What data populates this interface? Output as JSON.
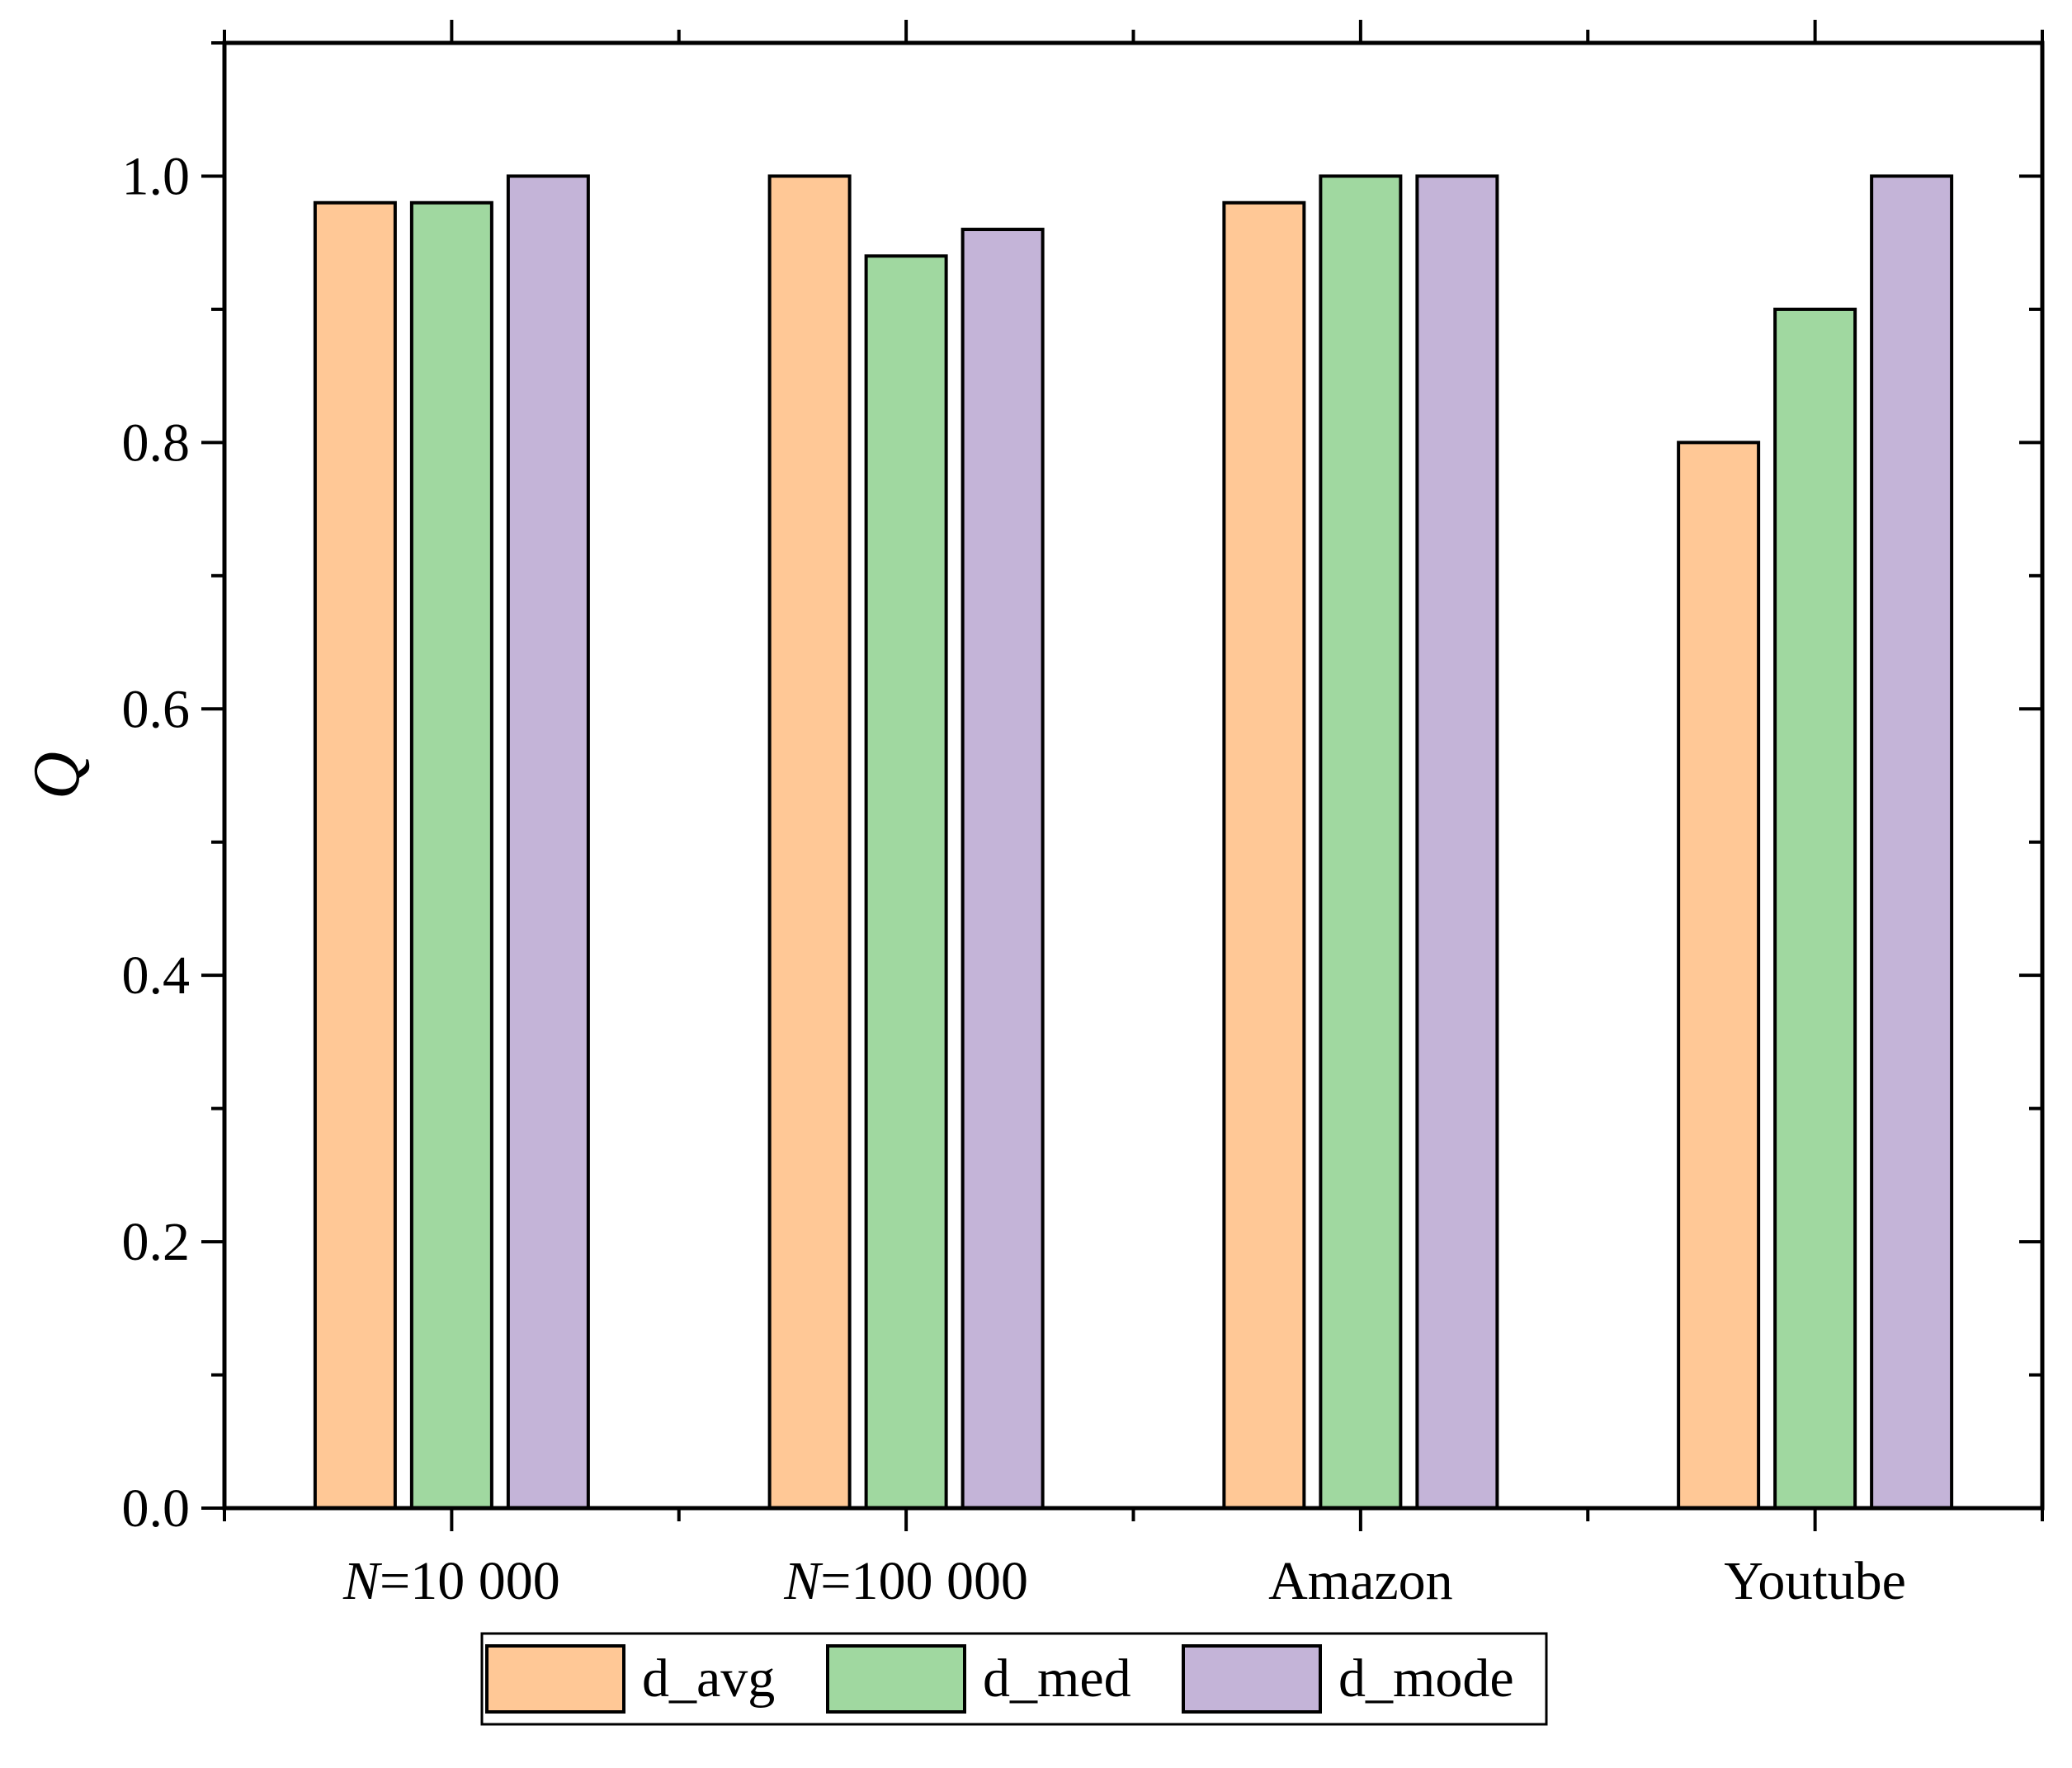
{
  "chart_data": {
    "type": "bar",
    "title": "",
    "xlabel": "",
    "ylabel": "Q",
    "ylim": [
      0,
      1.1
    ],
    "yticks": [
      "0.0",
      "0.2",
      "0.4",
      "0.6",
      "0.8",
      "1.0"
    ],
    "categories": [
      {
        "prefix": "N",
        "text": "=10 000"
      },
      {
        "prefix": "N",
        "text": "=100 000"
      },
      {
        "prefix": "",
        "text": "Amazon"
      },
      {
        "prefix": "",
        "text": "Youtube"
      }
    ],
    "series": [
      {
        "name": "d_avg",
        "color": "#FFC896",
        "values": [
          0.98,
          1.0,
          0.98,
          0.8
        ]
      },
      {
        "name": "d_med",
        "color": "#A0D8A0",
        "values": [
          0.98,
          0.94,
          1.0,
          0.9
        ]
      },
      {
        "name": "d_mode",
        "color": "#C4B4D8",
        "values": [
          1.0,
          0.96,
          1.0,
          1.0
        ]
      }
    ],
    "grid": false,
    "legend_position": "bottom"
  }
}
